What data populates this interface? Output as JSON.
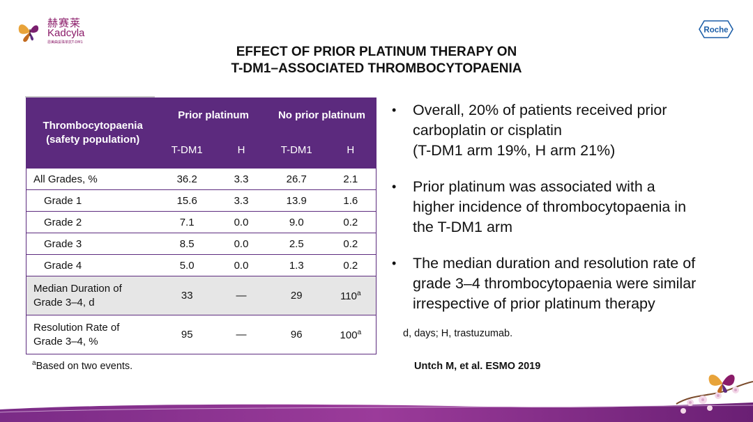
{
  "brand": {
    "name_zh": "赫赛莱",
    "name_en": "Kadcyla",
    "tagline": "恩美曲妥珠单抗T-DM1",
    "company": "Roche",
    "colors": {
      "purple": "#5c2a7e",
      "magenta": "#8a1a68",
      "grey_row": "#e6e6e6"
    }
  },
  "slide": {
    "title_line1": "EFFECT OF PRIOR PLATINUM THERAPY ON",
    "title_line2": "T-DM1–ASSOCIATED THROMBOCYTOPAENIA"
  },
  "table": {
    "row_header_line1": "Thrombocytopaenia",
    "row_header_line2": "(safety population)",
    "group1": "Prior platinum",
    "group2": "No prior platinum",
    "subcols": [
      "T-DM1",
      "H",
      "T-DM1",
      "H"
    ],
    "rows": [
      {
        "label": "All Grades, %",
        "values": [
          "36.2",
          "3.3",
          "26.7",
          "2.1"
        ]
      },
      {
        "label": "Grade 1",
        "values": [
          "15.6",
          "3.3",
          "13.9",
          "1.6"
        ]
      },
      {
        "label": "Grade 2",
        "values": [
          "7.1",
          "0.0",
          "9.0",
          "0.2"
        ]
      },
      {
        "label": "Grade 3",
        "values": [
          "8.5",
          "0.0",
          "2.5",
          "0.2"
        ]
      },
      {
        "label": "Grade 4",
        "values": [
          "5.0",
          "0.0",
          "1.3",
          "0.2"
        ]
      },
      {
        "label_line1": "Median Duration of",
        "label_line2": "Grade 3–4, d",
        "values": [
          "33",
          "—",
          "29",
          "110"
        ],
        "sup": "a"
      },
      {
        "label_line1": "Resolution Rate of",
        "label_line2": "Grade 3–4, %",
        "values": [
          "95",
          "—",
          "96",
          "100"
        ],
        "sup": "a"
      }
    ],
    "footnote_marker": "a",
    "footnote_text": "Based on two events."
  },
  "bullets": [
    {
      "line1": "Overall, 20% of patients received prior",
      "line2": "carboplatin or cisplatin",
      "line3": "(T-DM1 arm 19%, H arm 21%)"
    },
    {
      "line1": "Prior platinum was associated with a",
      "line2": "higher incidence of thrombocytopaenia in",
      "line3": "the T-DM1 arm"
    },
    {
      "line1": "The median duration and resolution rate of",
      "line2": "grade 3–4 thrombocytopaenia were similar",
      "line3": "irrespective of prior platinum therapy"
    }
  ],
  "bullet_symbol": "•",
  "abbreviations": "d, days; H, trastuzumab.",
  "citation": "Untch M, et al. ESMO 2019"
}
